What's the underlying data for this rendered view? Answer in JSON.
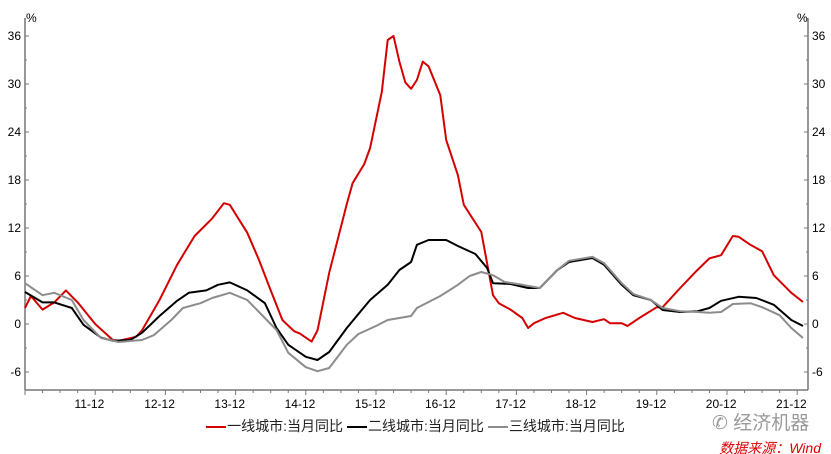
{
  "chart_data": {
    "type": "line",
    "title": "",
    "y_unit_left": "%",
    "y_unit_right": "%",
    "ylim": [
      -6,
      36
    ],
    "yticks": [
      -6,
      0,
      6,
      12,
      18,
      24,
      30,
      36
    ],
    "xlim": [
      "2011-01",
      "2022-03"
    ],
    "xtick_labels": [
      "11-12",
      "12-12",
      "13-12",
      "14-12",
      "15-12",
      "16-12",
      "17-12",
      "18-12",
      "19-12",
      "20-12",
      "21-12"
    ],
    "grid": false,
    "legend_position": "bottom",
    "series": [
      {
        "name": "一线城市:当月同比",
        "color": "#d40000",
        "points": [
          [
            "2011-01",
            2
          ],
          [
            "2011-02",
            3.5
          ],
          [
            "2011-04",
            1.8
          ],
          [
            "2011-06",
            2.7
          ],
          [
            "2011-08",
            4.2
          ],
          [
            "2011-10",
            2.7
          ],
          [
            "2012-01",
            0
          ],
          [
            "2012-04",
            -2
          ],
          [
            "2012-05",
            -2.1
          ],
          [
            "2012-08",
            -1.6
          ],
          [
            "2012-09",
            -0.8
          ],
          [
            "2012-12",
            3
          ],
          [
            "2013-03",
            7.4
          ],
          [
            "2013-06",
            11
          ],
          [
            "2013-09",
            13.2
          ],
          [
            "2013-11",
            15.1
          ],
          [
            "2013-12",
            14.9
          ],
          [
            "2014-03",
            11.4
          ],
          [
            "2014-05",
            8
          ],
          [
            "2014-07",
            4.2
          ],
          [
            "2014-09",
            0.5
          ],
          [
            "2014-11",
            -0.9
          ],
          [
            "2014-12",
            -1.2
          ],
          [
            "2015-02",
            -2.2
          ],
          [
            "2015-03",
            -0.8
          ],
          [
            "2015-05",
            6.4
          ],
          [
            "2015-08",
            15
          ],
          [
            "2015-09",
            17.6
          ],
          [
            "2015-11",
            20
          ],
          [
            "2015-12",
            22
          ],
          [
            "2016-02",
            29
          ],
          [
            "2016-03",
            35.5
          ],
          [
            "2016-04",
            36
          ],
          [
            "2016-05",
            32.8
          ],
          [
            "2016-06",
            30.2
          ],
          [
            "2016-07",
            29.4
          ],
          [
            "2016-08",
            30.5
          ],
          [
            "2016-09",
            32.8
          ],
          [
            "2016-10",
            32.2
          ],
          [
            "2016-12",
            28.6
          ],
          [
            "2017-01",
            23
          ],
          [
            "2017-03",
            18.6
          ],
          [
            "2017-04",
            14.9
          ],
          [
            "2017-07",
            11.5
          ],
          [
            "2017-09",
            3.6
          ],
          [
            "2017-10",
            2.6
          ],
          [
            "2017-12",
            1.8
          ],
          [
            "2018-02",
            0.75
          ],
          [
            "2018-03",
            -0.5
          ],
          [
            "2018-04",
            0.1
          ],
          [
            "2018-06",
            0.75
          ],
          [
            "2018-09",
            1.4
          ],
          [
            "2018-11",
            0.75
          ],
          [
            "2019-02",
            0.25
          ],
          [
            "2019-04",
            0.6
          ],
          [
            "2019-05",
            0.1
          ],
          [
            "2019-07",
            0.1
          ],
          [
            "2019-08",
            -0.25
          ],
          [
            "2019-10",
            0.75
          ],
          [
            "2020-01",
            2.1
          ],
          [
            "2020-02",
            2.1
          ],
          [
            "2020-05",
            4.5
          ],
          [
            "2020-08",
            6.8
          ],
          [
            "2020-10",
            8.2
          ],
          [
            "2020-12",
            8.6
          ],
          [
            "2021-02",
            11
          ],
          [
            "2021-03",
            10.9
          ],
          [
            "2021-05",
            9.9
          ],
          [
            "2021-07",
            9.1
          ],
          [
            "2021-09",
            6.1
          ],
          [
            "2021-12",
            3.9
          ],
          [
            "2022-02",
            2.75
          ]
        ]
      },
      {
        "name": "二线城市:当月同比",
        "color": "#000000",
        "points": [
          [
            "2011-01",
            4
          ],
          [
            "2011-04",
            2.7
          ],
          [
            "2011-06",
            2.7
          ],
          [
            "2011-09",
            2
          ],
          [
            "2011-11",
            -0.1
          ],
          [
            "2012-02",
            -1.7
          ],
          [
            "2012-04",
            -2.1
          ],
          [
            "2012-07",
            -2
          ],
          [
            "2012-09",
            -1.1
          ],
          [
            "2012-12",
            1
          ],
          [
            "2013-03",
            2.9
          ],
          [
            "2013-05",
            3.9
          ],
          [
            "2013-08",
            4.2
          ],
          [
            "2013-10",
            4.9
          ],
          [
            "2013-12",
            5.2
          ],
          [
            "2014-03",
            4.2
          ],
          [
            "2014-06",
            2.6
          ],
          [
            "2014-08",
            -0.5
          ],
          [
            "2014-10",
            -2.6
          ],
          [
            "2015-01",
            -4.1
          ],
          [
            "2015-03",
            -4.5
          ],
          [
            "2015-05",
            -3.5
          ],
          [
            "2015-08",
            -0.5
          ],
          [
            "2015-10",
            1.25
          ],
          [
            "2015-12",
            3
          ],
          [
            "2016-03",
            4.9
          ],
          [
            "2016-05",
            6.75
          ],
          [
            "2016-07",
            7.75
          ],
          [
            "2016-08",
            9.9
          ],
          [
            "2016-10",
            10.5
          ],
          [
            "2017-01",
            10.5
          ],
          [
            "2017-03",
            9.75
          ],
          [
            "2017-06",
            8.75
          ],
          [
            "2017-08",
            7
          ],
          [
            "2017-09",
            5.1
          ],
          [
            "2017-12",
            5
          ],
          [
            "2018-03",
            4.5
          ],
          [
            "2018-05",
            4.5
          ],
          [
            "2018-08",
            6.75
          ],
          [
            "2018-10",
            7.75
          ],
          [
            "2019-02",
            8.25
          ],
          [
            "2019-04",
            7.4
          ],
          [
            "2019-07",
            4.9
          ],
          [
            "2019-09",
            3.6
          ],
          [
            "2019-12",
            3
          ],
          [
            "2020-02",
            1.75
          ],
          [
            "2020-05",
            1.5
          ],
          [
            "2020-08",
            1.6
          ],
          [
            "2020-10",
            2
          ],
          [
            "2020-12",
            2.9
          ],
          [
            "2021-03",
            3.4
          ],
          [
            "2021-06",
            3.25
          ],
          [
            "2021-09",
            2.4
          ],
          [
            "2021-12",
            0.5
          ],
          [
            "2022-02",
            -0.25
          ]
        ]
      },
      {
        "name": "三线城市:当月同比",
        "color": "#8c8c8c",
        "points": [
          [
            "2011-01",
            5.1
          ],
          [
            "2011-04",
            3.6
          ],
          [
            "2011-06",
            3.9
          ],
          [
            "2011-09",
            3
          ],
          [
            "2011-11",
            0.5
          ],
          [
            "2012-02",
            -1.75
          ],
          [
            "2012-05",
            -2.25
          ],
          [
            "2012-09",
            -2
          ],
          [
            "2012-11",
            -1.4
          ],
          [
            "2013-02",
            0.5
          ],
          [
            "2013-04",
            2
          ],
          [
            "2013-07",
            2.6
          ],
          [
            "2013-09",
            3.25
          ],
          [
            "2013-12",
            3.9
          ],
          [
            "2014-03",
            3
          ],
          [
            "2014-05",
            1.5
          ],
          [
            "2014-08",
            -0.75
          ],
          [
            "2014-10",
            -3.6
          ],
          [
            "2015-01",
            -5.4
          ],
          [
            "2015-03",
            -5.9
          ],
          [
            "2015-05",
            -5.5
          ],
          [
            "2015-08",
            -2.6
          ],
          [
            "2015-10",
            -1.25
          ],
          [
            "2016-01",
            -0.25
          ],
          [
            "2016-03",
            0.5
          ],
          [
            "2016-07",
            1
          ],
          [
            "2016-08",
            2
          ],
          [
            "2016-12",
            3.5
          ],
          [
            "2017-03",
            4.9
          ],
          [
            "2017-05",
            6
          ],
          [
            "2017-07",
            6.5
          ],
          [
            "2017-09",
            6.1
          ],
          [
            "2017-11",
            5.25
          ],
          [
            "2018-02",
            4.9
          ],
          [
            "2018-05",
            4.5
          ],
          [
            "2018-08",
            6.75
          ],
          [
            "2018-10",
            7.9
          ],
          [
            "2019-02",
            8.4
          ],
          [
            "2019-04",
            7.6
          ],
          [
            "2019-07",
            5.1
          ],
          [
            "2019-09",
            3.75
          ],
          [
            "2019-12",
            3
          ],
          [
            "2020-02",
            2
          ],
          [
            "2020-05",
            1.6
          ],
          [
            "2020-08",
            1.5
          ],
          [
            "2020-10",
            1.4
          ],
          [
            "2020-12",
            1.5
          ],
          [
            "2021-02",
            2.5
          ],
          [
            "2021-05",
            2.6
          ],
          [
            "2021-07",
            2.1
          ],
          [
            "2021-10",
            1.1
          ],
          [
            "2021-12",
            -0.5
          ],
          [
            "2022-02",
            -1.75
          ]
        ]
      }
    ]
  },
  "source_text": "数据来源：Wind",
  "watermark": "经济机器",
  "watermark_icon": "wechat-icon"
}
